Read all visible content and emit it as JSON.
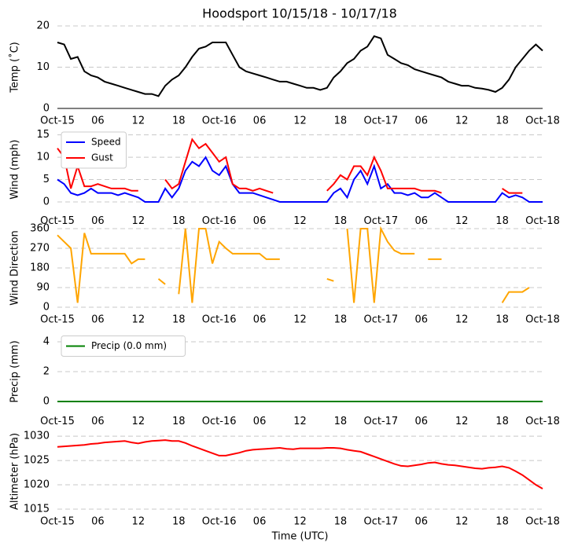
{
  "chart_data": [
    {
      "type": "line",
      "title": "Hoodsport 10/15/18 - 10/17/18",
      "ylabel": "Temp (˚C)",
      "x": [
        0,
        1,
        2,
        3,
        4,
        5,
        6,
        7,
        8,
        9,
        10,
        11,
        12,
        13,
        14,
        15,
        16,
        17,
        18,
        19,
        20,
        21,
        22,
        23,
        24,
        25,
        26,
        27,
        28,
        29,
        30,
        31,
        32,
        33,
        34,
        35,
        36,
        37,
        38,
        39,
        40,
        41,
        42,
        43,
        44,
        45,
        46,
        47,
        48,
        49,
        50,
        51,
        52,
        53,
        54,
        55,
        56,
        57,
        58,
        59,
        60,
        61,
        62,
        63,
        64,
        65,
        66,
        67,
        68,
        69,
        70,
        71,
        72
      ],
      "series": [
        {
          "color": "#000000",
          "values": [
            16,
            15.5,
            12,
            12.5,
            9,
            8,
            7.5,
            6.5,
            6,
            5.5,
            5,
            4.5,
            4,
            3.5,
            3.5,
            3,
            5.5,
            7,
            8,
            10,
            12.5,
            14.5,
            15,
            16,
            16,
            16,
            13,
            10,
            9,
            8.5,
            8,
            7.5,
            7,
            6.5,
            6.5,
            6,
            5.5,
            5,
            5,
            4.5,
            5,
            7.5,
            9,
            11,
            12,
            14,
            15,
            17.5,
            17,
            13,
            12,
            11,
            10.5,
            9.5,
            9,
            8.5,
            8,
            7.5,
            6.5,
            6,
            5.5,
            5.5,
            5,
            4.8,
            4.5,
            4,
            5,
            7,
            10,
            12,
            14,
            15.5,
            14
          ]
        }
      ],
      "xlim": [
        0,
        72
      ],
      "xticks": [
        {
          "value": 0,
          "label": "Oct-15"
        },
        {
          "value": 6,
          "label": "06"
        },
        {
          "value": 12,
          "label": "12"
        },
        {
          "value": 18,
          "label": "18"
        },
        {
          "value": 24,
          "label": "Oct-16"
        },
        {
          "value": 30,
          "label": "06"
        },
        {
          "value": 36,
          "label": "12"
        },
        {
          "value": 42,
          "label": "18"
        },
        {
          "value": 48,
          "label": "Oct-17"
        },
        {
          "value": 54,
          "label": "06"
        },
        {
          "value": 60,
          "label": "12"
        },
        {
          "value": 66,
          "label": "18"
        },
        {
          "value": 72,
          "label": "Oct-18"
        }
      ],
      "ylim": [
        0,
        20
      ],
      "yticks": [
        0,
        10,
        20
      ],
      "grid": true
    },
    {
      "type": "line",
      "ylabel": "Wind (mph)",
      "legend": "upper left",
      "x": [
        0,
        1,
        2,
        3,
        4,
        5,
        6,
        7,
        8,
        9,
        10,
        11,
        12,
        13,
        14,
        15,
        16,
        17,
        18,
        19,
        20,
        21,
        22,
        23,
        24,
        25,
        26,
        27,
        28,
        29,
        30,
        31,
        32,
        33,
        34,
        35,
        36,
        37,
        38,
        39,
        40,
        41,
        42,
        43,
        44,
        45,
        46,
        47,
        48,
        49,
        50,
        51,
        52,
        53,
        54,
        55,
        56,
        57,
        58,
        59,
        60,
        61,
        62,
        63,
        64,
        65,
        66,
        67,
        68,
        69,
        70,
        71,
        72
      ],
      "series": [
        {
          "name": "Speed",
          "color": "#0000ff",
          "values": [
            5,
            4,
            2,
            1.5,
            2,
            3,
            2,
            2,
            2,
            1.5,
            2,
            1.5,
            1,
            0,
            0,
            0,
            3,
            1,
            3,
            7,
            9,
            8,
            10,
            7,
            6,
            8,
            4,
            2,
            2,
            2,
            1.5,
            1,
            0.5,
            0,
            0,
            0,
            0,
            0,
            0,
            0,
            0,
            2,
            3,
            1,
            5,
            7,
            4,
            8,
            3,
            4,
            2,
            2,
            1.5,
            2,
            1,
            1,
            2,
            1,
            0,
            0,
            0,
            0,
            0,
            0,
            0,
            0,
            2,
            1,
            1.5,
            1,
            0,
            0,
            0
          ]
        },
        {
          "name": "Gust",
          "color": "#ff0000",
          "values": [
            12,
            10,
            3,
            8,
            3.5,
            3.5,
            4,
            3.5,
            3,
            3,
            3,
            2.5,
            2.5,
            null,
            null,
            null,
            5,
            3,
            4,
            9,
            14,
            12,
            13,
            11,
            9,
            10,
            4,
            3,
            3,
            2.5,
            3,
            2.5,
            2,
            null,
            null,
            null,
            null,
            null,
            null,
            null,
            2.5,
            4,
            6,
            5,
            8,
            8,
            6,
            10,
            7,
            3,
            3,
            3,
            3,
            3,
            2.5,
            2.5,
            2.5,
            2,
            null,
            null,
            null,
            null,
            null,
            null,
            null,
            null,
            3,
            2,
            2,
            2,
            null,
            null,
            null
          ]
        }
      ],
      "xlim": [
        0,
        72
      ],
      "xticks": [
        {
          "value": 0,
          "label": "Oct-15"
        },
        {
          "value": 6,
          "label": "06"
        },
        {
          "value": 12,
          "label": "12"
        },
        {
          "value": 18,
          "label": "18"
        },
        {
          "value": 24,
          "label": "Oct-16"
        },
        {
          "value": 30,
          "label": "06"
        },
        {
          "value": 36,
          "label": "12"
        },
        {
          "value": 42,
          "label": "18"
        },
        {
          "value": 48,
          "label": "Oct-17"
        },
        {
          "value": 54,
          "label": "06"
        },
        {
          "value": 60,
          "label": "12"
        },
        {
          "value": 66,
          "label": "18"
        },
        {
          "value": 72,
          "label": "Oct-18"
        }
      ],
      "ylim": [
        -1.5,
        16
      ],
      "yticks": [
        0,
        5,
        10,
        15
      ],
      "grid": true
    },
    {
      "type": "line",
      "ylabel": "Wind Direction",
      "x": [
        0,
        1,
        2,
        3,
        4,
        5,
        6,
        7,
        8,
        9,
        10,
        11,
        12,
        13,
        14,
        15,
        16,
        17,
        18,
        19,
        20,
        21,
        22,
        23,
        24,
        25,
        26,
        27,
        28,
        29,
        30,
        31,
        32,
        33,
        34,
        35,
        36,
        37,
        38,
        39,
        40,
        41,
        42,
        43,
        44,
        45,
        46,
        47,
        48,
        49,
        50,
        51,
        52,
        53,
        54,
        55,
        56,
        57,
        58,
        59,
        60,
        61,
        62,
        63,
        64,
        65,
        66,
        67,
        68,
        69,
        70,
        71,
        72
      ],
      "series": [
        {
          "color": "#ffa500",
          "values": [
            330,
            300,
            270,
            20,
            340,
            245,
            245,
            245,
            245,
            245,
            245,
            200,
            220,
            220,
            null,
            130,
            105,
            null,
            60,
            360,
            20,
            360,
            360,
            200,
            300,
            270,
            245,
            245,
            245,
            245,
            245,
            220,
            220,
            220,
            null,
            null,
            null,
            null,
            null,
            null,
            130,
            120,
            null,
            360,
            20,
            360,
            360,
            20,
            360,
            300,
            260,
            245,
            245,
            245,
            null,
            220,
            220,
            220,
            null,
            null,
            null,
            null,
            null,
            null,
            null,
            null,
            20,
            70,
            70,
            70,
            90,
            null,
            null
          ]
        }
      ],
      "xlim": [
        0,
        72
      ],
      "xticks": [
        {
          "value": 0,
          "label": "Oct-15"
        },
        {
          "value": 6,
          "label": "06"
        },
        {
          "value": 12,
          "label": "12"
        },
        {
          "value": 18,
          "label": "18"
        },
        {
          "value": 24,
          "label": "Oct-16"
        },
        {
          "value": 30,
          "label": "06"
        },
        {
          "value": 36,
          "label": "12"
        },
        {
          "value": 42,
          "label": "18"
        },
        {
          "value": 48,
          "label": "Oct-17"
        },
        {
          "value": 54,
          "label": "06"
        },
        {
          "value": 60,
          "label": "12"
        },
        {
          "value": 66,
          "label": "18"
        },
        {
          "value": 72,
          "label": "Oct-18"
        }
      ],
      "ylim": [
        0,
        360
      ],
      "yticks": [
        0,
        90,
        180,
        270,
        360
      ],
      "grid": true
    },
    {
      "type": "line",
      "ylabel": "Precip (mm)",
      "legend": "upper left",
      "x": [
        0,
        1,
        2,
        3,
        4,
        5,
        6,
        7,
        8,
        9,
        10,
        11,
        12,
        13,
        14,
        15,
        16,
        17,
        18,
        19,
        20,
        21,
        22,
        23,
        24,
        25,
        26,
        27,
        28,
        29,
        30,
        31,
        32,
        33,
        34,
        35,
        36,
        37,
        38,
        39,
        40,
        41,
        42,
        43,
        44,
        45,
        46,
        47,
        48,
        49,
        50,
        51,
        52,
        53,
        54,
        55,
        56,
        57,
        58,
        59,
        60,
        61,
        62,
        63,
        64,
        65,
        66,
        67,
        68,
        69,
        70,
        71,
        72
      ],
      "series": [
        {
          "name": "Precip (0.0 mm)",
          "color": "#008000",
          "values": [
            0,
            0,
            0,
            0,
            0,
            0,
            0,
            0,
            0,
            0,
            0,
            0,
            0,
            0,
            0,
            0,
            0,
            0,
            0,
            0,
            0,
            0,
            0,
            0,
            0,
            0,
            0,
            0,
            0,
            0,
            0,
            0,
            0,
            0,
            0,
            0,
            0,
            0,
            0,
            0,
            0,
            0,
            0,
            0,
            0,
            0,
            0,
            0,
            0,
            0,
            0,
            0,
            0,
            0,
            0,
            0,
            0,
            0,
            0,
            0,
            0,
            0,
            0,
            0,
            0,
            0,
            0,
            0,
            0,
            0,
            0,
            0,
            0
          ]
        }
      ],
      "xlim": [
        0,
        72
      ],
      "xticks": [
        {
          "value": 0,
          "label": "Oct-15"
        },
        {
          "value": 6,
          "label": "06"
        },
        {
          "value": 12,
          "label": "12"
        },
        {
          "value": 18,
          "label": "18"
        },
        {
          "value": 24,
          "label": "Oct-16"
        },
        {
          "value": 30,
          "label": "06"
        },
        {
          "value": 36,
          "label": "12"
        },
        {
          "value": 42,
          "label": "18"
        },
        {
          "value": 48,
          "label": "Oct-17"
        },
        {
          "value": 54,
          "label": "06"
        },
        {
          "value": 60,
          "label": "12"
        },
        {
          "value": 66,
          "label": "18"
        },
        {
          "value": 72,
          "label": "Oct-18"
        }
      ],
      "ylim": [
        -0.5,
        4.5
      ],
      "yticks": [
        0,
        2,
        4
      ],
      "grid": true
    },
    {
      "type": "line",
      "ylabel": "Altimeter (hPa)",
      "xlabel": "Time (UTC)",
      "x": [
        0,
        1,
        2,
        3,
        4,
        5,
        6,
        7,
        8,
        9,
        10,
        11,
        12,
        13,
        14,
        15,
        16,
        17,
        18,
        19,
        20,
        21,
        22,
        23,
        24,
        25,
        26,
        27,
        28,
        29,
        30,
        31,
        32,
        33,
        34,
        35,
        36,
        37,
        38,
        39,
        40,
        41,
        42,
        43,
        44,
        45,
        46,
        47,
        48,
        49,
        50,
        51,
        52,
        53,
        54,
        55,
        56,
        57,
        58,
        59,
        60,
        61,
        62,
        63,
        64,
        65,
        66,
        67,
        68,
        69,
        70,
        71,
        72
      ],
      "series": [
        {
          "color": "#ff0000",
          "values": [
            1027.8,
            1027.9,
            1028,
            1028.1,
            1028.2,
            1028.4,
            1028.5,
            1028.7,
            1028.8,
            1028.9,
            1029,
            1028.7,
            1028.5,
            1028.8,
            1029,
            1029.1,
            1029.2,
            1029,
            1029,
            1028.6,
            1028,
            1027.5,
            1027,
            1026.5,
            1026,
            1026,
            1026.3,
            1026.6,
            1027,
            1027.2,
            1027.3,
            1027.4,
            1027.5,
            1027.6,
            1027.4,
            1027.3,
            1027.5,
            1027.5,
            1027.5,
            1027.5,
            1027.6,
            1027.6,
            1027.5,
            1027.2,
            1027,
            1026.8,
            1026.3,
            1025.8,
            1025.3,
            1024.8,
            1024.3,
            1023.9,
            1023.8,
            1024,
            1024.2,
            1024.5,
            1024.6,
            1024.3,
            1024.1,
            1024,
            1023.8,
            1023.6,
            1023.4,
            1023.3,
            1023.5,
            1023.6,
            1023.8,
            1023.5,
            1022.8,
            1022,
            1021,
            1020,
            1019.2
          ]
        }
      ],
      "xlim": [
        0,
        72
      ],
      "xticks": [
        {
          "value": 0,
          "label": "Oct-15"
        },
        {
          "value": 6,
          "label": "06"
        },
        {
          "value": 12,
          "label": "12"
        },
        {
          "value": 18,
          "label": "18"
        },
        {
          "value": 24,
          "label": "Oct-16"
        },
        {
          "value": 30,
          "label": "06"
        },
        {
          "value": 36,
          "label": "12"
        },
        {
          "value": 42,
          "label": "18"
        },
        {
          "value": 48,
          "label": "Oct-17"
        },
        {
          "value": 54,
          "label": "06"
        },
        {
          "value": 60,
          "label": "12"
        },
        {
          "value": 66,
          "label": "18"
        },
        {
          "value": 72,
          "label": "Oct-18"
        }
      ],
      "ylim": [
        1015,
        1030.5
      ],
      "yticks": [
        1015,
        1020,
        1025,
        1030
      ],
      "grid": true
    }
  ]
}
